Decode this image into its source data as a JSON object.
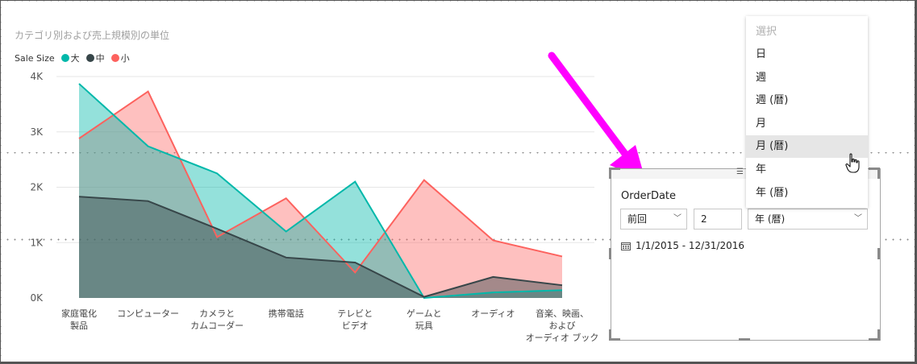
{
  "chart": {
    "title": "カテゴリ別および売上規模別の単位",
    "legend_label": "Sale Size"
  },
  "chart_data": {
    "type": "area",
    "title": "カテゴリ別および売上規模別の単位",
    "legend_title": "Sale Size",
    "legend_position": "top-left",
    "categories": [
      [
        "家庭電化",
        "製品"
      ],
      [
        "コンピューター"
      ],
      [
        "カメラと",
        "カムコーダー"
      ],
      [
        "携帯電話"
      ],
      [
        "テレビと",
        "ビデオ"
      ],
      [
        "ゲームと",
        "玩具"
      ],
      [
        "オーディオ"
      ],
      [
        "音楽、映画、",
        "および",
        "オーディオ ブック"
      ]
    ],
    "y_ticks": [
      "0K",
      "1K",
      "2K",
      "3K",
      "4K"
    ],
    "ylim": [
      0,
      4000
    ],
    "grid": true,
    "series": [
      {
        "name": "大",
        "color": "#01B8AA",
        "values": [
          3870,
          2740,
          2250,
          1200,
          2100,
          0,
          100,
          140
        ]
      },
      {
        "name": "中",
        "color": "#374649",
        "values": [
          1830,
          1750,
          1250,
          730,
          640,
          20,
          380,
          230
        ]
      },
      {
        "name": "小",
        "color": "#FD625E",
        "values": [
          2880,
          3730,
          1100,
          1800,
          460,
          2130,
          1040,
          750
        ]
      }
    ]
  },
  "slicer": {
    "field_title": "OrderDate",
    "period_value": "前回",
    "count_value": "2",
    "unit_value": "年 (暦)",
    "date_range": "1/1/2015 - 12/31/2016"
  },
  "dropdown": {
    "header": "選択",
    "items": [
      "日",
      "週",
      "週 (暦)",
      "月",
      "月 (暦)",
      "年",
      "年 (暦)"
    ],
    "hovered_index": 4
  },
  "colors": {
    "annotation_arrow": "#FF00FF",
    "selection_border": "#a6a6a6"
  }
}
